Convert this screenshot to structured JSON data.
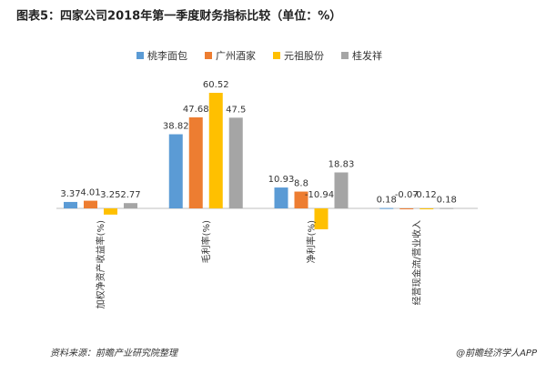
{
  "chart_data": {
    "type": "bar",
    "title": "图表5：四家公司2018年第一季度财务指标比较（单位：%）",
    "categories": [
      "加权净资产收益率(%)",
      "毛利率(%)",
      "净利率(%)",
      "经营现金流/营业收入"
    ],
    "series": [
      {
        "name": "桃李面包",
        "color": "#5b9bd5",
        "values": [
          3.37,
          38.82,
          10.93,
          0.18
        ]
      },
      {
        "name": "广州酒家",
        "color": "#ed7d31",
        "values": [
          4.01,
          47.68,
          8.8,
          -0.07
        ]
      },
      {
        "name": "元祖股份",
        "color": "#ffc000",
        "values": [
          -3.25,
          60.52,
          -10.94,
          -0.12
        ]
      },
      {
        "name": "桂发祥",
        "color": "#a5a5a5",
        "values": [
          2.77,
          47.5,
          18.83,
          0.18
        ]
      }
    ],
    "source": "资料来源：前瞻产业研究院整理",
    "credit": "@前瞻经济学人APP"
  }
}
